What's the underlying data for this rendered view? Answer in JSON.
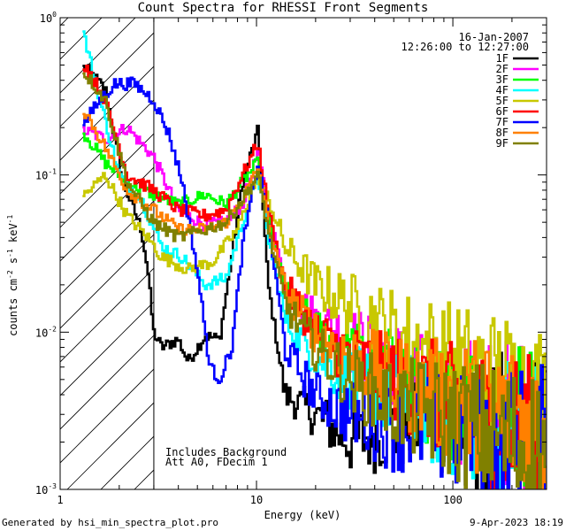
{
  "page": {
    "title": "Count Spectra for RHESSI Front Segments",
    "date": "16-Jan-2007",
    "time_range": "12:26:00 to 12:27:00",
    "annotation_line1": "Includes Background",
    "annotation_line2": "Att A0, FDecim 1",
    "footer_left": "Generated by hsi_min_spectra_plot.pro",
    "footer_right": "9-Apr-2023 18:19",
    "xlabel": "Energy (keV)",
    "ylabel_counts": "counts cm",
    "ylabel_exp1": "-2",
    "ylabel_s": " s",
    "ylabel_exp2": "-1",
    "ylabel_kev": " keV",
    "ylabel_exp3": "-1"
  },
  "chart_data": {
    "type": "line",
    "title": "Count Spectra for RHESSI Front Segments",
    "xlabel": "Energy (keV)",
    "ylabel": "counts cm^-2 s^-1 keV^-1",
    "xscale": "log",
    "yscale": "log",
    "xlim": [
      1,
      300
    ],
    "ylim": [
      0.001,
      1
    ],
    "x_tick_labels": [
      "1",
      "10",
      "100"
    ],
    "y_tick_labels": [
      "10^0",
      "10^-1",
      "10^-2",
      "10^-3"
    ],
    "hatched_region_below_keV": 3,
    "legend_position": "top-right",
    "series": [
      {
        "name": "1F",
        "color": "#000000",
        "points": [
          [
            1.35,
            0.48
          ],
          [
            1.7,
            0.35
          ],
          [
            2.1,
            0.09
          ],
          [
            2.6,
            0.045
          ],
          [
            2.8,
            0.025
          ],
          [
            3.0,
            0.01
          ],
          [
            3.3,
            0.008
          ],
          [
            4.0,
            0.009
          ],
          [
            4.5,
            0.0065
          ],
          [
            5.5,
            0.0095
          ],
          [
            6.5,
            0.009
          ],
          [
            8.5,
            0.09
          ],
          [
            10.2,
            0.19
          ],
          [
            11.5,
            0.02
          ],
          [
            14,
            0.004
          ],
          [
            20,
            0.003
          ],
          [
            30,
            0.002
          ],
          [
            50,
            0.0025
          ],
          [
            80,
            0.003
          ],
          [
            130,
            0.0025
          ],
          [
            200,
            0.0025
          ],
          [
            280,
            0.002
          ]
        ]
      },
      {
        "name": "2F",
        "color": "#ff00ff",
        "points": [
          [
            1.35,
            0.19
          ],
          [
            1.7,
            0.17
          ],
          [
            2.2,
            0.2
          ],
          [
            3.0,
            0.13
          ],
          [
            4.0,
            0.06
          ],
          [
            5.5,
            0.048
          ],
          [
            7,
            0.05
          ],
          [
            8.5,
            0.065
          ],
          [
            10.2,
            0.14
          ],
          [
            11.5,
            0.06
          ],
          [
            14,
            0.02
          ],
          [
            20,
            0.012
          ],
          [
            30,
            0.009
          ],
          [
            50,
            0.0065
          ],
          [
            80,
            0.004
          ],
          [
            130,
            0.0035
          ],
          [
            200,
            0.003
          ],
          [
            280,
            0.0025
          ]
        ]
      },
      {
        "name": "3F",
        "color": "#00ff00",
        "points": [
          [
            1.35,
            0.18
          ],
          [
            1.7,
            0.12
          ],
          [
            2.2,
            0.09
          ],
          [
            3.0,
            0.075
          ],
          [
            4.0,
            0.065
          ],
          [
            5.5,
            0.075
          ],
          [
            7,
            0.065
          ],
          [
            8.5,
            0.09
          ],
          [
            10.2,
            0.12
          ],
          [
            11.5,
            0.055
          ],
          [
            14,
            0.018
          ],
          [
            20,
            0.01
          ],
          [
            30,
            0.0075
          ],
          [
            50,
            0.0055
          ],
          [
            80,
            0.004
          ],
          [
            130,
            0.0035
          ],
          [
            200,
            0.003
          ],
          [
            280,
            0.0025
          ]
        ]
      },
      {
        "name": "4F",
        "color": "#00ffff",
        "points": [
          [
            1.3,
            0.85
          ],
          [
            1.6,
            0.3
          ],
          [
            2.0,
            0.1
          ],
          [
            2.6,
            0.07
          ],
          [
            3.3,
            0.035
          ],
          [
            4.2,
            0.03
          ],
          [
            5.5,
            0.02
          ],
          [
            7,
            0.022
          ],
          [
            8.5,
            0.05
          ],
          [
            10.2,
            0.1
          ],
          [
            11.5,
            0.04
          ],
          [
            14,
            0.012
          ],
          [
            20,
            0.007
          ],
          [
            30,
            0.005
          ],
          [
            50,
            0.004
          ],
          [
            80,
            0.003
          ],
          [
            130,
            0.0028
          ],
          [
            200,
            0.0025
          ],
          [
            280,
            0.002
          ]
        ]
      },
      {
        "name": "5F",
        "color": "#c8c800",
        "points": [
          [
            1.35,
            0.075
          ],
          [
            1.7,
            0.1
          ],
          [
            2.2,
            0.055
          ],
          [
            2.8,
            0.04
          ],
          [
            3.3,
            0.03
          ],
          [
            4.5,
            0.025
          ],
          [
            6,
            0.028
          ],
          [
            8,
            0.045
          ],
          [
            10.2,
            0.1
          ],
          [
            11.5,
            0.07
          ],
          [
            14,
            0.035
          ],
          [
            20,
            0.02
          ],
          [
            30,
            0.015
          ],
          [
            50,
            0.01
          ],
          [
            80,
            0.0075
          ],
          [
            130,
            0.0055
          ],
          [
            200,
            0.0045
          ],
          [
            280,
            0.0035
          ]
        ]
      },
      {
        "name": "6F",
        "color": "#ff0000",
        "points": [
          [
            1.35,
            0.5
          ],
          [
            1.7,
            0.3
          ],
          [
            2.2,
            0.1
          ],
          [
            3.0,
            0.08
          ],
          [
            4.0,
            0.06
          ],
          [
            5.5,
            0.055
          ],
          [
            7,
            0.06
          ],
          [
            8.5,
            0.1
          ],
          [
            10.2,
            0.16
          ],
          [
            11.5,
            0.06
          ],
          [
            14,
            0.02
          ],
          [
            20,
            0.01
          ],
          [
            30,
            0.007
          ],
          [
            50,
            0.005
          ],
          [
            80,
            0.004
          ],
          [
            130,
            0.003
          ],
          [
            200,
            0.0025
          ],
          [
            280,
            0.002
          ]
        ]
      },
      {
        "name": "7F",
        "color": "#0000ff",
        "points": [
          [
            1.35,
            0.22
          ],
          [
            1.6,
            0.3
          ],
          [
            1.9,
            0.38
          ],
          [
            2.4,
            0.38
          ],
          [
            3.0,
            0.3
          ],
          [
            3.6,
            0.18
          ],
          [
            4.2,
            0.09
          ],
          [
            5,
            0.025
          ],
          [
            5.8,
            0.006
          ],
          [
            6.5,
            0.005
          ],
          [
            7.5,
            0.008
          ],
          [
            8.5,
            0.035
          ],
          [
            10.2,
            0.12
          ],
          [
            11.5,
            0.05
          ],
          [
            14,
            0.008
          ],
          [
            20,
            0.004
          ],
          [
            30,
            0.003
          ],
          [
            50,
            0.0025
          ],
          [
            80,
            0.0025
          ],
          [
            130,
            0.002
          ],
          [
            200,
            0.002
          ],
          [
            280,
            0.0018
          ]
        ]
      },
      {
        "name": "8F",
        "color": "#ff8000",
        "points": [
          [
            1.35,
            0.25
          ],
          [
            1.7,
            0.15
          ],
          [
            2.2,
            0.08
          ],
          [
            3.0,
            0.06
          ],
          [
            4.0,
            0.045
          ],
          [
            5.5,
            0.045
          ],
          [
            7,
            0.05
          ],
          [
            8.5,
            0.07
          ],
          [
            10.2,
            0.11
          ],
          [
            11.5,
            0.05
          ],
          [
            14,
            0.018
          ],
          [
            20,
            0.01
          ],
          [
            30,
            0.007
          ],
          [
            50,
            0.005
          ],
          [
            80,
            0.004
          ],
          [
            130,
            0.0035
          ],
          [
            200,
            0.003
          ],
          [
            280,
            0.0025
          ]
        ]
      },
      {
        "name": "9F",
        "color": "#808000",
        "points": [
          [
            1.35,
            0.44
          ],
          [
            1.7,
            0.3
          ],
          [
            2.2,
            0.09
          ],
          [
            3.0,
            0.05
          ],
          [
            4.0,
            0.04
          ],
          [
            5.5,
            0.045
          ],
          [
            7,
            0.05
          ],
          [
            8.5,
            0.07
          ],
          [
            10.2,
            0.1
          ],
          [
            11.5,
            0.045
          ],
          [
            14,
            0.015
          ],
          [
            20,
            0.008
          ],
          [
            30,
            0.005
          ],
          [
            50,
            0.0035
          ],
          [
            80,
            0.003
          ],
          [
            130,
            0.0025
          ],
          [
            200,
            0.002
          ],
          [
            280,
            0.0018
          ]
        ]
      }
    ]
  }
}
